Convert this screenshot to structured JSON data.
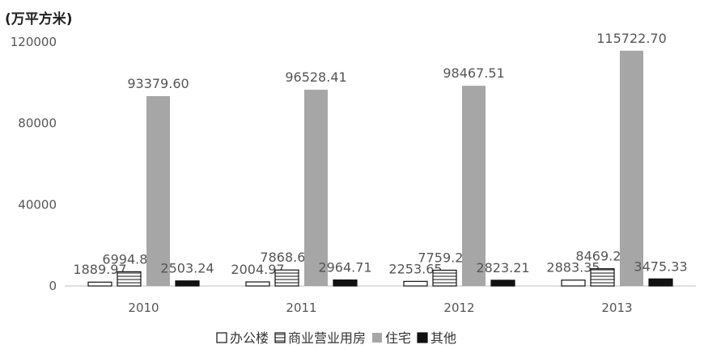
{
  "chart_data": {
    "type": "bar",
    "unit_label": "(万平方米)",
    "categories": [
      "2010",
      "2011",
      "2012",
      "2013"
    ],
    "ylim": [
      0,
      120000
    ],
    "yticks": [
      "0",
      "40000",
      "80000",
      "120000"
    ],
    "ytick_values": [
      0,
      40000,
      80000,
      120000
    ],
    "grid": false,
    "legend_position": "bottom",
    "series": [
      {
        "name": "办公楼",
        "values": [
          1889.97,
          2004.97,
          2253.65,
          2883.35
        ],
        "labels": [
          "1889.97",
          "2004.97",
          "2253.65",
          "2883.35"
        ],
        "fill": "#ffffff",
        "pattern": "none"
      },
      {
        "name": "商业营业用房",
        "values": [
          6994.84,
          7868.65,
          7759.28,
          8469.22
        ],
        "labels": [
          "6994.84",
          "7868.65",
          "7759.28",
          "8469.22"
        ],
        "fill": "#ffffff",
        "pattern": "horizontal-lines"
      },
      {
        "name": "住宅",
        "values": [
          93379.6,
          96528.41,
          98467.51,
          115722.7
        ],
        "labels": [
          "93379.60",
          "96528.41",
          "98467.51",
          "115722.70"
        ],
        "fill": "#a6a6a6",
        "pattern": "none"
      },
      {
        "name": "其他",
        "values": [
          2503.24,
          2964.71,
          2823.21,
          3475.33
        ],
        "labels": [
          "2503.24",
          "2964.71",
          "2823.21",
          "3475.33"
        ],
        "fill": "#111111",
        "pattern": "none"
      }
    ]
  }
}
